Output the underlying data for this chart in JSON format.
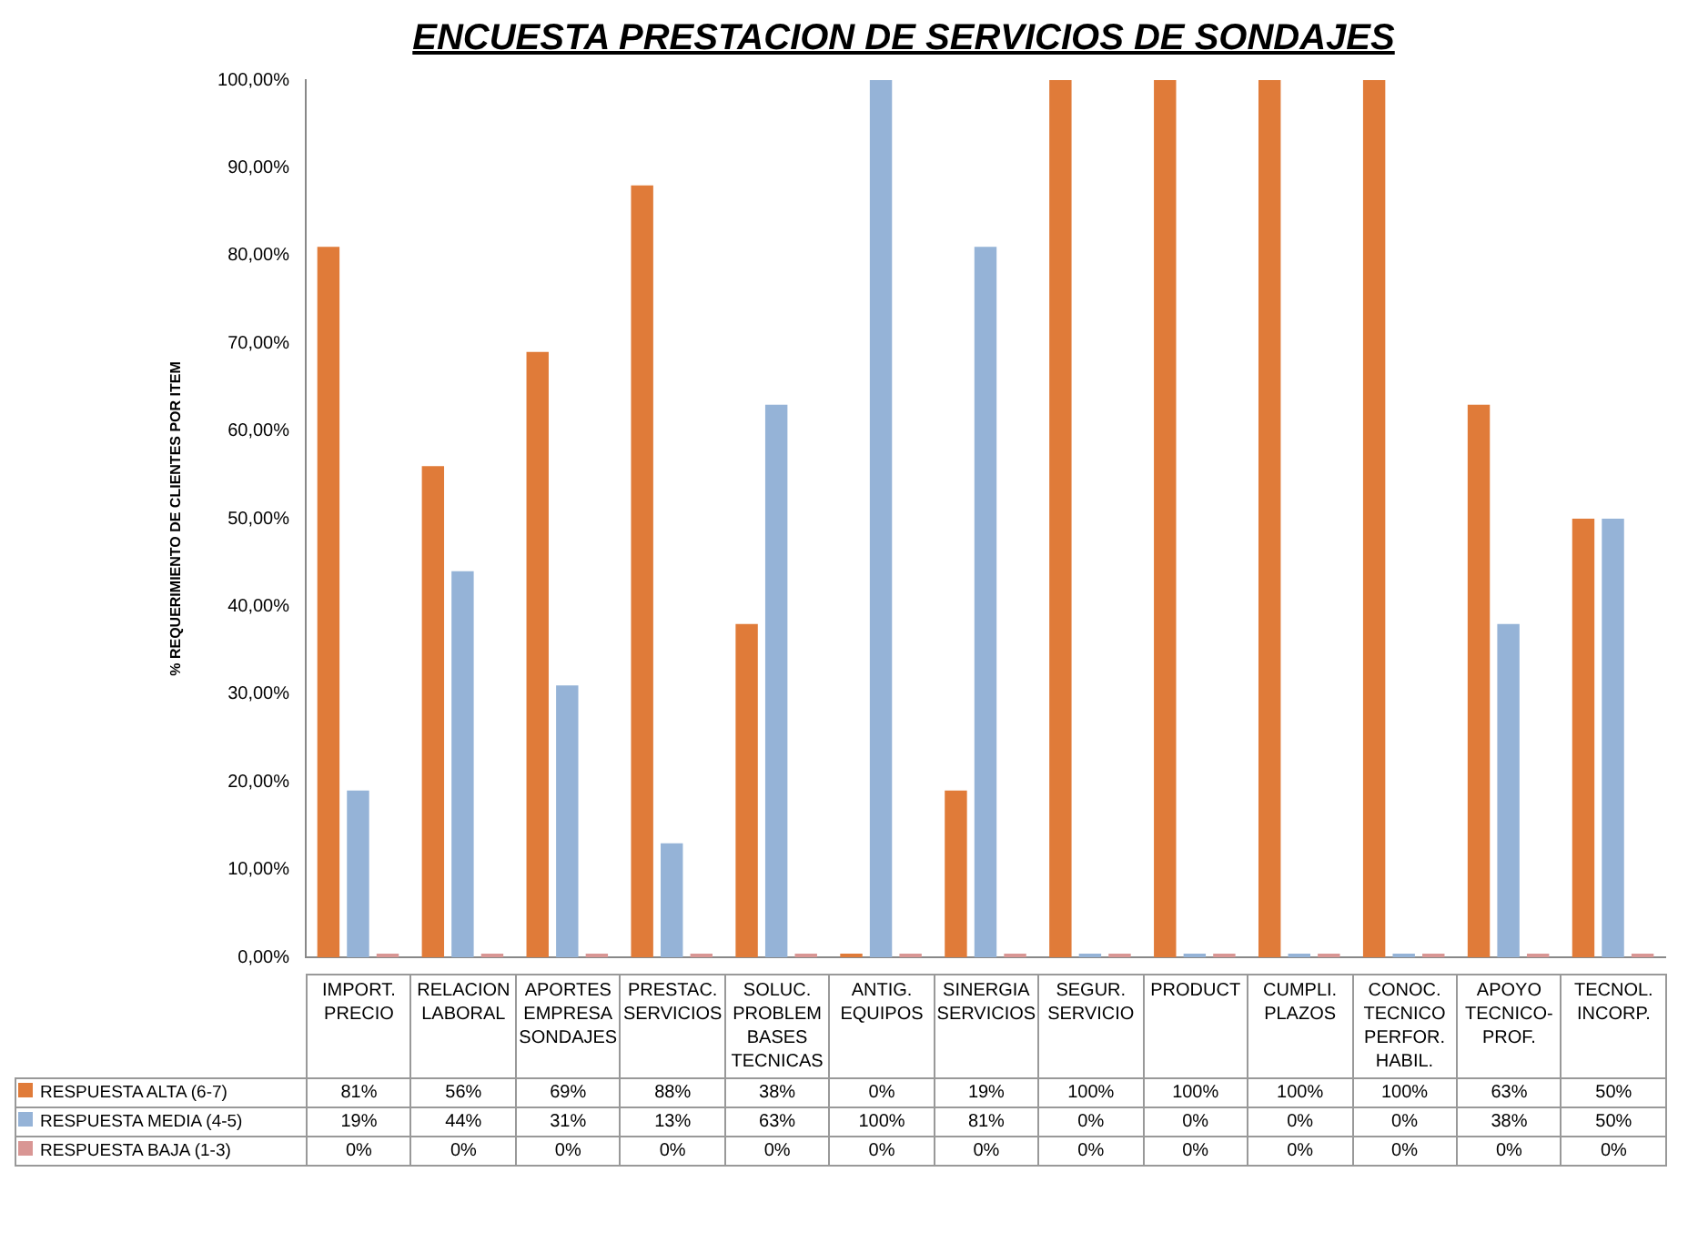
{
  "chart_data": {
    "type": "bar",
    "title": "ENCUESTA PRESTACION DE SERVICIOS DE SONDAJES",
    "ylabel": "% REQUERIMIENTO DE CLIENTES POR ITEM",
    "categories": [
      "IMPORT. PRECIO",
      "RELACION LABORAL",
      "APORTES EMPRESA SONDAJES",
      "PRESTAC. SERVICIOS",
      "SOLUC. PROBLEM BASES TECNICAS",
      "ANTIG. EQUIPOS",
      "SINERGIA SERVICIOS",
      "SEGUR. SERVICIO",
      "PRODUCT",
      "CUMPLI. PLAZOS",
      "CONOC. TECNICO PERFOR. HABIL.",
      "APOYO TECNICO-PROF.",
      "TECNOL. INCORP."
    ],
    "series": [
      {
        "name": "RESPUESTA ALTA (6-7)",
        "color": "#e07b39",
        "values": [
          81,
          56,
          69,
          88,
          38,
          0,
          19,
          100,
          100,
          100,
          100,
          63,
          50
        ],
        "value_labels": [
          "81%",
          "56%",
          "69%",
          "88%",
          "38%",
          "0%",
          "19%",
          "100%",
          "100%",
          "100%",
          "100%",
          "63%",
          "50%"
        ]
      },
      {
        "name": "RESPUESTA MEDIA (4-5)",
        "color": "#95b3d7",
        "values": [
          19,
          44,
          31,
          13,
          63,
          100,
          81,
          0,
          0,
          0,
          0,
          38,
          50
        ],
        "value_labels": [
          "19%",
          "44%",
          "31%",
          "13%",
          "63%",
          "100%",
          "81%",
          "0%",
          "0%",
          "0%",
          "0%",
          "38%",
          "50%"
        ]
      },
      {
        "name": "RESPUESTA BAJA (1-3)",
        "color": "#d99694",
        "values": [
          0,
          0,
          0,
          0,
          0,
          0,
          0,
          0,
          0,
          0,
          0,
          0,
          0
        ],
        "value_labels": [
          "0%",
          "0%",
          "0%",
          "0%",
          "0%",
          "0%",
          "0%",
          "0%",
          "0%",
          "0%",
          "0%",
          "0%",
          "0%"
        ]
      }
    ],
    "ylim": [
      0,
      100
    ],
    "yticks": [
      {
        "value": 0,
        "label": "0,00%"
      },
      {
        "value": 10,
        "label": "10,00%"
      },
      {
        "value": 20,
        "label": "20,00%"
      },
      {
        "value": 30,
        "label": "30,00%"
      },
      {
        "value": 40,
        "label": "40,00%"
      },
      {
        "value": 50,
        "label": "50,00%"
      },
      {
        "value": 60,
        "label": "60,00%"
      },
      {
        "value": 70,
        "label": "70,00%"
      },
      {
        "value": 80,
        "label": "80,00%"
      },
      {
        "value": 90,
        "label": "90,00%"
      },
      {
        "value": 100,
        "label": "100,00%"
      }
    ],
    "legend": "bottom"
  }
}
